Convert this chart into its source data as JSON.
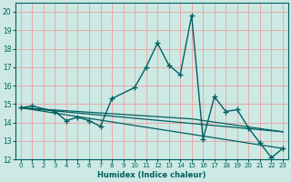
{
  "title": "",
  "xlabel": "Humidex (Indice chaleur)",
  "ylabel": "",
  "xlim": [
    -0.5,
    23.5
  ],
  "ylim": [
    12,
    20.5
  ],
  "yticks": [
    12,
    13,
    14,
    15,
    16,
    17,
    18,
    19,
    20
  ],
  "xticks": [
    0,
    1,
    2,
    3,
    4,
    5,
    6,
    7,
    8,
    9,
    10,
    11,
    12,
    13,
    14,
    15,
    16,
    17,
    18,
    19,
    20,
    21,
    22,
    23
  ],
  "bg_color": "#cce9e4",
  "grid_color": "#e8aaaa",
  "line_color": "#006060",
  "series": [
    {
      "x": [
        0,
        1,
        3,
        4,
        5,
        6,
        7,
        8,
        10,
        11,
        12,
        13,
        14,
        15,
        16,
        17,
        18,
        19,
        20,
        21,
        22,
        23
      ],
      "y": [
        14.8,
        14.9,
        14.6,
        14.1,
        14.3,
        14.1,
        13.8,
        15.3,
        15.9,
        17.0,
        18.3,
        17.1,
        16.6,
        19.8,
        13.1,
        15.4,
        14.6,
        14.7,
        13.7,
        12.9,
        12.1,
        12.6
      ],
      "marker": "+",
      "markersize": 4,
      "linewidth": 1.0
    },
    {
      "x": [
        0,
        23
      ],
      "y": [
        14.8,
        13.5
      ],
      "marker": null,
      "linewidth": 0.9
    },
    {
      "x": [
        0,
        23
      ],
      "y": [
        14.8,
        12.6
      ],
      "marker": null,
      "linewidth": 0.9
    },
    {
      "x": [
        0,
        15,
        23
      ],
      "y": [
        14.8,
        14.2,
        13.5
      ],
      "marker": null,
      "linewidth": 0.9
    }
  ]
}
